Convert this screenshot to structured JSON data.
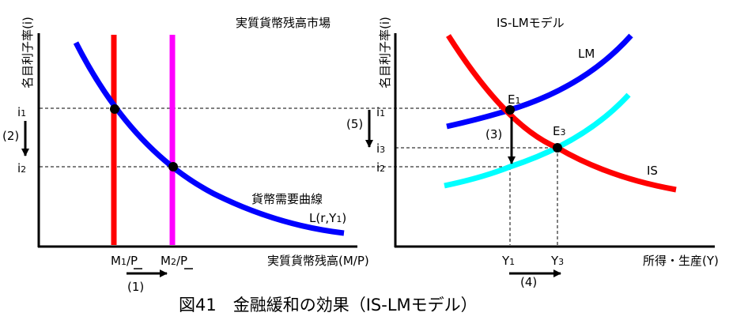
{
  "caption": "図41　金融緩和の効果（IS-LMモデル）",
  "colors": {
    "money_supply_1": "#ff0000",
    "money_supply_2": "#ff00ff",
    "money_demand": "#0000ff",
    "LM": "#0000ff",
    "LM_shifted": "#00ffff",
    "IS": "#ff0000",
    "axis": "#000000"
  },
  "left_panel": {
    "title": "実質貨幣残高市場",
    "y_axis_label": "名目利子率(i)",
    "x_axis_label": "実質貨幣残高(M/P)",
    "i1": {
      "main": "i",
      "sub": "1"
    },
    "i2": {
      "main": "i",
      "sub": "2"
    },
    "m1": {
      "main": "M",
      "sub": "1",
      "rest": "/P"
    },
    "m2": {
      "main": "M",
      "sub": "2",
      "rest": "/P"
    },
    "demand_curve_name": "貨幣需要曲線",
    "demand_curve_formula": {
      "pre": "L(r,Y",
      "sub": "1",
      "post": ")"
    },
    "step1": "(1)",
    "step2": "(2)",
    "step5": "(5)"
  },
  "right_panel": {
    "title": "IS-LMモデル",
    "y_axis_label": "名目利子率(i)",
    "x_axis_label": "所得・生産(Y)",
    "i1": {
      "main": "i",
      "sub": "1"
    },
    "i2": {
      "main": "i",
      "sub": "2"
    },
    "i3": {
      "main": "i",
      "sub": "3"
    },
    "y1": {
      "main": "Y",
      "sub": "1"
    },
    "y3": {
      "main": "Y",
      "sub": "3"
    },
    "e1": {
      "main": "E",
      "sub": "1"
    },
    "e3": {
      "main": "E",
      "sub": "3"
    },
    "lm_label": "LM",
    "is_label": "IS",
    "step3": "(3)",
    "step4": "(4)"
  }
}
